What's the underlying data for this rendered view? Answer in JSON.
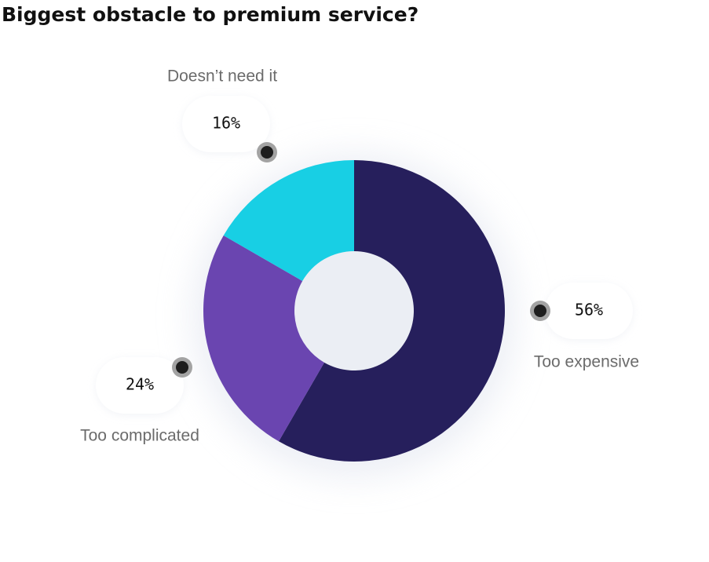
{
  "chart_data": {
    "type": "donut",
    "title": "Biggest obstacle to premium service?",
    "categories": [
      "Too expensive",
      "Too complicated",
      "Doesn’t need it"
    ],
    "values": [
      56,
      24,
      16
    ],
    "value_labels": [
      "56%",
      "24%",
      "16%"
    ],
    "colors": [
      "#261f5c",
      "#6a45b0",
      "#18cfe4"
    ]
  }
}
